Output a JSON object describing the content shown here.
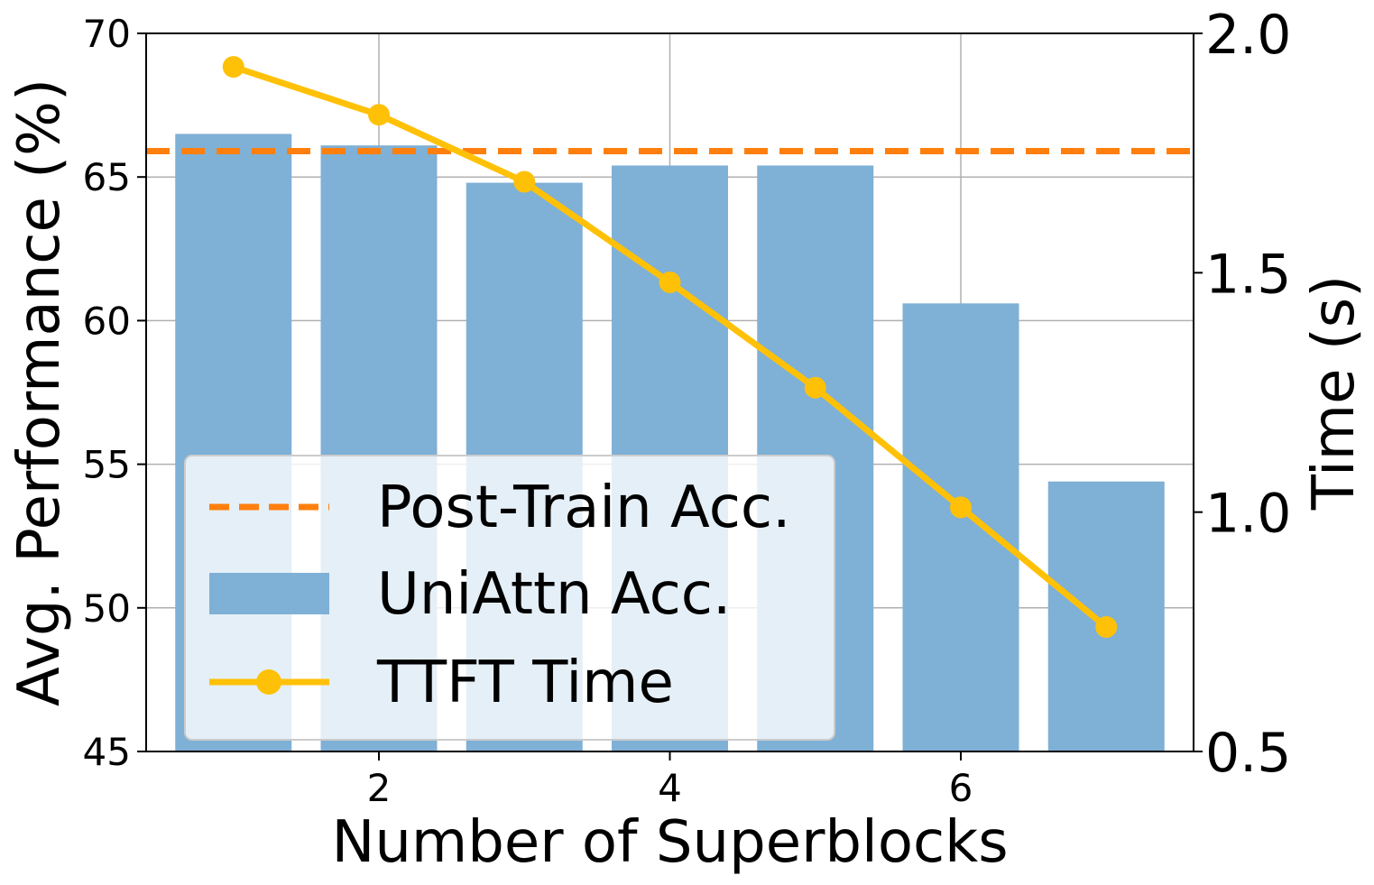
{
  "chart_data": {
    "type": "bar",
    "title": "",
    "xlabel": "Number of Superblocks",
    "ylabel": "Avg. Performance (%)",
    "y2label": "Time (s)",
    "x": [
      1,
      2,
      3,
      4,
      5,
      6,
      7
    ],
    "xlim": [
      0.4,
      7.6
    ],
    "xticks": [
      2,
      4,
      6
    ],
    "ylim": [
      45,
      70
    ],
    "yticks": [
      45,
      50,
      55,
      60,
      65,
      70
    ],
    "y2lim": [
      0.5,
      2.0
    ],
    "y2ticks": [
      "0.5",
      "1.0",
      "1.5",
      "2.0"
    ],
    "grid": true,
    "legend_position": "lower-left",
    "series": [
      {
        "name": "Post-Train Acc.",
        "kind": "hline",
        "axis": "left",
        "value": 65.9,
        "color": "#ff7f0e",
        "style": "dashed"
      },
      {
        "name": "UniAttn Acc.",
        "kind": "bar",
        "axis": "left",
        "values": [
          66.5,
          66.1,
          64.8,
          65.4,
          65.4,
          60.6,
          54.4
        ],
        "color": "#7fb0d6"
      },
      {
        "name": "TTFT Time",
        "kind": "line",
        "axis": "right",
        "values": [
          1.93,
          1.83,
          1.69,
          1.48,
          1.26,
          1.01,
          0.76
        ],
        "color": "#ffc107",
        "marker": "circle"
      }
    ]
  }
}
